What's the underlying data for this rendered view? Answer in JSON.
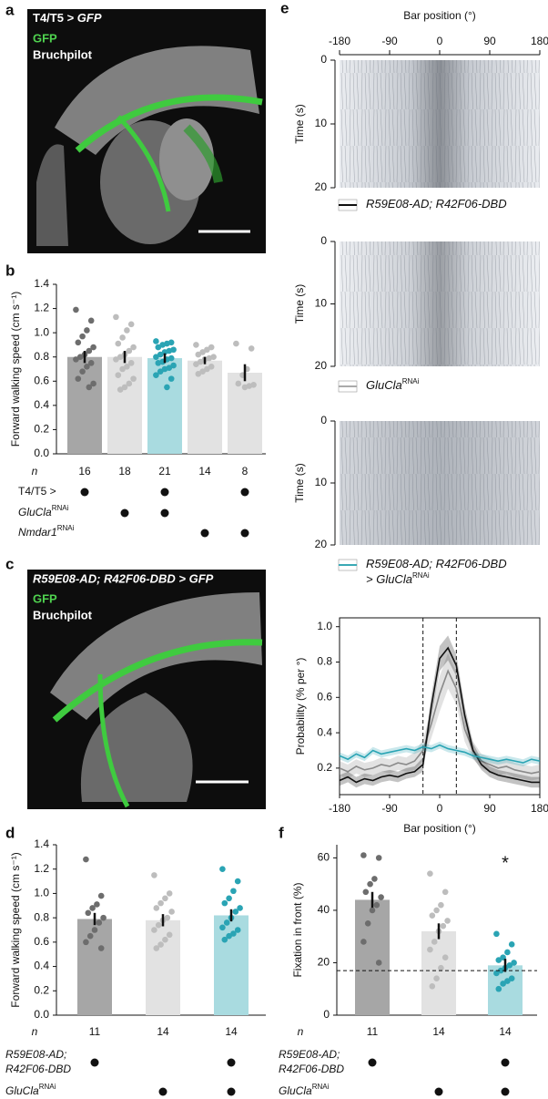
{
  "panel_a": {
    "label": "a",
    "title": "T4/T5 > ",
    "title_gene": "GFP",
    "stains": [
      "GFP",
      "Bruchpilot"
    ]
  },
  "panel_c": {
    "label": "c",
    "title": "R59E08-AD; R42F06-DBD > GFP",
    "stains": [
      "GFP",
      "Bruchpilot"
    ]
  },
  "panel_e": {
    "label": "e",
    "xlabel": "Bar position (°)",
    "xlim": [
      -180,
      180
    ],
    "xticks": [
      -180,
      -90,
      0,
      90,
      180
    ],
    "ylabel": "Time (s)",
    "ylim": [
      0,
      20
    ],
    "yticks": [
      0,
      10,
      20
    ],
    "legends": [
      {
        "lines": [
          "R59E08-AD; R42F06-DBD"
        ],
        "color": "#111111"
      },
      {
        "lines": [
          "GluCla"
        ],
        "sup": "RNAi",
        "color": "#aaaaaa"
      },
      {
        "lines": [
          "R59E08-AD; R42F06-DBD",
          "> GluCla"
        ],
        "sup": "RNAi",
        "color": "#3aa9b5"
      }
    ]
  },
  "chart_data": [
    {
      "type": "bar",
      "label": "b",
      "ylabel": "Forward walking speed (cm s⁻¹)",
      "ylim": [
        0,
        1.4
      ],
      "yticks": [
        {
          "value": 0,
          "label": "0.0"
        },
        0.2,
        0.4,
        0.6,
        0.8,
        {
          "value": 1,
          "label": "1.0"
        },
        1.2,
        1.4
      ],
      "values": [
        0.8,
        0.8,
        0.79,
        0.77,
        0.67
      ],
      "errors": [
        0.05,
        0.05,
        0.04,
        0.03,
        0.07
      ],
      "colors": [
        "#a6a6a6",
        "#e2e2e2",
        "#a9dbe0",
        "#e2e2e2",
        "#e2e2e2"
      ],
      "point_colors": [
        "#6d6d6d",
        "#bdbdbd",
        "#2aa4b4",
        "#bdbdbd",
        "#bdbdbd"
      ],
      "points": [
        [
          1.19,
          1.1,
          1.02,
          0.97,
          0.92,
          0.88,
          0.85,
          0.82,
          0.8,
          0.78,
          0.75,
          0.72,
          0.68,
          0.62,
          0.58,
          0.55
        ],
        [
          1.13,
          1.07,
          1.02,
          0.96,
          0.91,
          0.88,
          0.85,
          0.82,
          0.8,
          0.78,
          0.75,
          0.72,
          0.7,
          0.65,
          0.62,
          0.58,
          0.55,
          0.53
        ],
        [
          0.93,
          0.92,
          0.91,
          0.9,
          0.88,
          0.86,
          0.85,
          0.84,
          0.82,
          0.8,
          0.79,
          0.78,
          0.76,
          0.75,
          0.73,
          0.71,
          0.7,
          0.68,
          0.65,
          0.62,
          0.55
        ],
        [
          0.9,
          0.88,
          0.86,
          0.84,
          0.82,
          0.8,
          0.79,
          0.78,
          0.76,
          0.74,
          0.72,
          0.7,
          0.68,
          0.66
        ],
        [
          0.91,
          0.87,
          0.7,
          0.65,
          0.58,
          0.57,
          0.56,
          0.55
        ]
      ],
      "n_label": "n",
      "n": [
        16,
        18,
        21,
        14,
        8
      ],
      "genotype": [
        {
          "lines": [
            "T4/T5 >"
          ],
          "italic": false,
          "present": [
            true,
            false,
            true,
            false,
            true
          ]
        },
        {
          "lines": [
            "GluCla"
          ],
          "sup": "RNAi",
          "italic": true,
          "present": [
            false,
            true,
            true,
            false,
            false
          ]
        },
        {
          "lines": [
            "Nmdar1"
          ],
          "sup": "RNAi",
          "italic": true,
          "present": [
            false,
            false,
            false,
            true,
            true
          ]
        }
      ]
    },
    {
      "type": "line",
      "xlabel": "Bar position (°)",
      "ylabel": "Probability (% per °)",
      "x": [
        -180,
        -165,
        -150,
        -135,
        -120,
        -105,
        -90,
        -75,
        -60,
        -45,
        -30,
        -15,
        0,
        15,
        30,
        45,
        60,
        75,
        90,
        105,
        120,
        135,
        150,
        165,
        180
      ],
      "xlim": [
        -180,
        180
      ],
      "xticks": [
        -180,
        -90,
        0,
        90,
        180
      ],
      "ylim": [
        0.05,
        1.05
      ],
      "yticks": [
        0.2,
        0.4,
        0.6,
        0.8,
        {
          "value": 1,
          "label": "1.0"
        }
      ],
      "vlines": [
        -30,
        30
      ],
      "series": [
        {
          "color": "#8a8a8a",
          "values": [
            0.2,
            0.18,
            0.21,
            0.19,
            0.2,
            0.22,
            0.21,
            0.23,
            0.22,
            0.24,
            0.3,
            0.45,
            0.62,
            0.75,
            0.65,
            0.42,
            0.3,
            0.24,
            0.22,
            0.2,
            0.21,
            0.19,
            0.18,
            0.17,
            0.18
          ],
          "errors": [
            0.04,
            0.04,
            0.04,
            0.04,
            0.04,
            0.04,
            0.04,
            0.04,
            0.04,
            0.05,
            0.06,
            0.08,
            0.1,
            0.1,
            0.09,
            0.07,
            0.05,
            0.04,
            0.04,
            0.04,
            0.04,
            0.04,
            0.04,
            0.04,
            0.04
          ]
        },
        {
          "color": "#111111",
          "values": [
            0.13,
            0.15,
            0.12,
            0.14,
            0.13,
            0.15,
            0.16,
            0.15,
            0.17,
            0.18,
            0.22,
            0.55,
            0.82,
            0.88,
            0.78,
            0.5,
            0.3,
            0.22,
            0.18,
            0.16,
            0.15,
            0.14,
            0.13,
            0.12,
            0.12
          ],
          "errors": [
            0.03,
            0.03,
            0.03,
            0.03,
            0.03,
            0.03,
            0.03,
            0.03,
            0.03,
            0.03,
            0.04,
            0.06,
            0.07,
            0.07,
            0.06,
            0.05,
            0.04,
            0.03,
            0.03,
            0.03,
            0.03,
            0.03,
            0.03,
            0.03,
            0.03
          ]
        },
        {
          "color": "#2aa4b4",
          "values": [
            0.27,
            0.25,
            0.28,
            0.26,
            0.3,
            0.28,
            0.29,
            0.3,
            0.31,
            0.3,
            0.32,
            0.31,
            0.33,
            0.31,
            0.3,
            0.29,
            0.27,
            0.26,
            0.25,
            0.24,
            0.25,
            0.24,
            0.23,
            0.25,
            0.24
          ],
          "errors": [
            0.02,
            0.02,
            0.02,
            0.02,
            0.02,
            0.02,
            0.02,
            0.02,
            0.02,
            0.02,
            0.02,
            0.02,
            0.02,
            0.02,
            0.02,
            0.02,
            0.02,
            0.02,
            0.02,
            0.02,
            0.02,
            0.02,
            0.02,
            0.02,
            0.02
          ]
        }
      ]
    },
    {
      "type": "bar",
      "label": "d",
      "ylabel": "Forward walking speed (cm s⁻¹)",
      "ylim": [
        0,
        1.4
      ],
      "yticks": [
        {
          "value": 0,
          "label": "0.0"
        },
        0.2,
        0.4,
        0.6,
        0.8,
        {
          "value": 1,
          "label": "1.0"
        },
        1.2,
        1.4
      ],
      "values": [
        0.79,
        0.78,
        0.82
      ],
      "errors": [
        0.05,
        0.05,
        0.05
      ],
      "colors": [
        "#a6a6a6",
        "#e2e2e2",
        "#a9dbe0"
      ],
      "point_colors": [
        "#6d6d6d",
        "#bdbdbd",
        "#2aa4b4"
      ],
      "points": [
        [
          1.28,
          0.98,
          0.91,
          0.88,
          0.84,
          0.8,
          0.76,
          0.7,
          0.65,
          0.6,
          0.55
        ],
        [
          1.15,
          1.0,
          0.96,
          0.92,
          0.88,
          0.85,
          0.8,
          0.78,
          0.74,
          0.7,
          0.66,
          0.62,
          0.58,
          0.55
        ],
        [
          1.2,
          1.1,
          1.02,
          0.96,
          0.92,
          0.88,
          0.85,
          0.8,
          0.76,
          0.72,
          0.7,
          0.67,
          0.65,
          0.62
        ]
      ],
      "n_label": "n",
      "n": [
        11,
        14,
        14
      ],
      "genotype": [
        {
          "lines": [
            "R59E08-AD;",
            "R42F06-DBD"
          ],
          "italic": true,
          "present": [
            true,
            false,
            true
          ]
        },
        {
          "lines": [
            "GluCla"
          ],
          "sup": "RNAi",
          "italic": true,
          "present": [
            false,
            true,
            true
          ]
        }
      ]
    },
    {
      "type": "bar",
      "label": "f",
      "ylabel": "Fixation in front (%)",
      "ylim": [
        0,
        65
      ],
      "yticks": [
        0,
        20,
        40,
        60
      ],
      "values": [
        44,
        32,
        19
      ],
      "errors": [
        3,
        3,
        2.5
      ],
      "hline": 17,
      "annotation": "*",
      "colors": [
        "#a6a6a6",
        "#e2e2e2",
        "#a9dbe0"
      ],
      "point_colors": [
        "#6d6d6d",
        "#bdbdbd",
        "#2aa4b4"
      ],
      "points": [
        [
          61,
          60,
          52,
          50,
          47,
          45,
          42,
          40,
          35,
          28,
          20
        ],
        [
          54,
          47,
          42,
          40,
          38,
          36,
          34,
          32,
          28,
          25,
          22,
          18,
          14,
          11
        ],
        [
          31,
          27,
          24,
          22,
          21,
          20,
          19,
          18,
          17,
          16,
          14,
          13,
          12,
          10
        ]
      ],
      "n_label": "n",
      "n": [
        11,
        14,
        14
      ],
      "genotype": [
        {
          "lines": [
            "R59E08-AD;",
            "R42F06-DBD"
          ],
          "italic": true,
          "present": [
            true,
            false,
            true
          ]
        },
        {
          "lines": [
            "GluCla"
          ],
          "sup": "RNAi",
          "italic": true,
          "present": [
            false,
            true,
            true
          ]
        }
      ]
    }
  ]
}
